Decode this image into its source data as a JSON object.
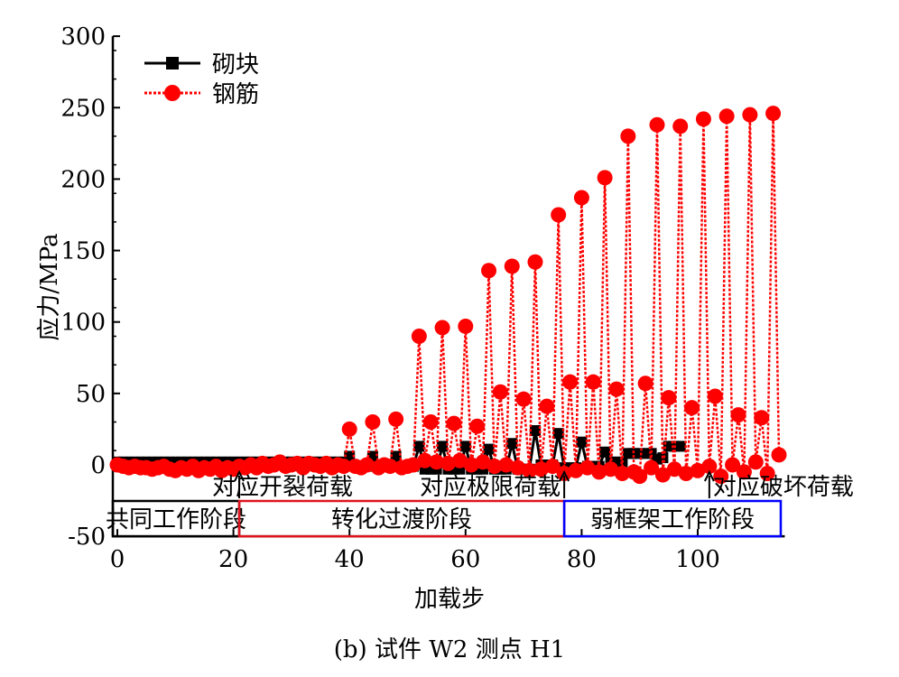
{
  "chart_data": {
    "type": "line",
    "title": "",
    "caption": "(b)  试件 W2 测点 H1",
    "xlabel": "加载步",
    "ylabel": "应力/MPa",
    "xlim": [
      0,
      115
    ],
    "ylim": [
      -50,
      300
    ],
    "xticks": [
      0,
      20,
      40,
      60,
      80,
      100
    ],
    "yticks": [
      -50,
      0,
      50,
      100,
      150,
      200,
      250,
      300
    ],
    "legend_position": "top-left",
    "colors": {
      "block": "#000000",
      "rebar": "#ff0000",
      "stage1": "#000000",
      "stage2": "#e0141e",
      "stage3": "#0000ff"
    },
    "series": [
      {
        "name": "砌块",
        "marker": "square",
        "x_start": 0,
        "values": [
          2,
          2,
          2,
          2,
          2,
          2,
          2,
          2,
          2,
          2,
          2,
          2,
          2,
          2,
          2,
          2,
          2,
          2,
          2,
          2,
          2,
          2,
          2,
          2,
          2,
          2,
          2,
          2,
          2,
          2,
          2,
          2,
          2,
          2,
          2,
          2,
          2,
          2,
          2,
          2,
          6,
          -1,
          -1,
          -1,
          6,
          -1,
          -1,
          -1,
          6,
          -1,
          -1,
          -1,
          13,
          -3,
          -3,
          -3,
          13,
          -3,
          -3,
          -3,
          13,
          -3,
          -3,
          -3,
          11,
          -3,
          -3,
          -3,
          15,
          -3,
          -3,
          -3,
          24,
          0,
          0,
          0,
          22,
          -2,
          -2,
          -2,
          16,
          -1,
          -1,
          -1,
          9,
          2,
          2,
          2,
          8,
          8,
          8,
          8,
          8,
          4,
          5,
          13,
          13,
          13
        ]
      },
      {
        "name": "钢筋",
        "marker": "circle",
        "x_start": 0,
        "values": [
          0,
          -1,
          -2,
          -1,
          -2,
          -2,
          -3,
          -2,
          -1,
          -3,
          -4,
          -2,
          -3,
          -1,
          -4,
          -2,
          -3,
          -1,
          -4,
          -2,
          -3,
          -1,
          -2,
          0,
          -2,
          1,
          -1,
          0,
          2,
          -1,
          0,
          1,
          -2,
          1,
          0,
          -1,
          1,
          -2,
          0,
          -1,
          25,
          -1,
          -2,
          0,
          30,
          -2,
          0,
          -1,
          32,
          -2,
          -1,
          0,
          90,
          3,
          30,
          2,
          96,
          1,
          29,
          3,
          97,
          0,
          27,
          2,
          136,
          -1,
          51,
          0,
          139,
          -2,
          46,
          -4,
          142,
          -3,
          41,
          -1,
          175,
          -6,
          58,
          -4,
          187,
          -2,
          58,
          -5,
          201,
          -3,
          53,
          -6,
          230,
          -5,
          -8,
          57,
          -2,
          238,
          -7,
          47,
          -3,
          237,
          -6,
          40,
          -4,
          242,
          -1,
          48,
          -8,
          244,
          0,
          35,
          -5,
          245,
          2,
          33,
          -6,
          246,
          7
        ]
      }
    ],
    "annotations": [
      {
        "text": "对应开裂荷载",
        "x": 21
      },
      {
        "text": "对应极限荷载",
        "x": 77
      },
      {
        "text": "对应破坏荷载",
        "x": 102
      }
    ],
    "stages": [
      {
        "text": "共同工作阶段",
        "from": 0,
        "to": 21
      },
      {
        "text": "转化过渡阶段",
        "from": 21,
        "to": 77
      },
      {
        "text": "弱框架工作阶段",
        "from": 77,
        "to": 115
      }
    ]
  }
}
